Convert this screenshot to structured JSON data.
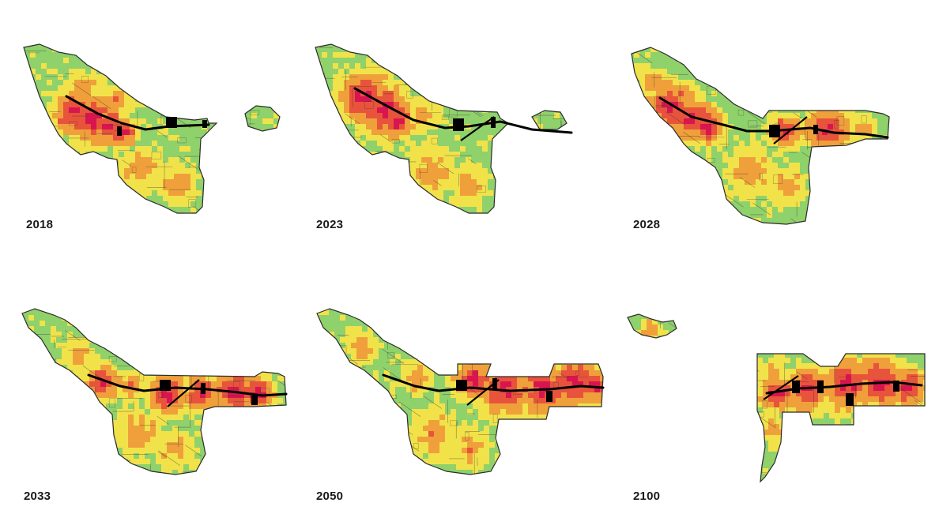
{
  "panels": [
    {
      "id": "p2018",
      "year": "2018",
      "stage": 0
    },
    {
      "id": "p2023",
      "year": "2023",
      "stage": 1
    },
    {
      "id": "p2028",
      "year": "2028",
      "stage": 2
    },
    {
      "id": "p2033",
      "year": "2033",
      "stage": 3
    },
    {
      "id": "p2050",
      "year": "2050",
      "stage": 4
    },
    {
      "id": "p2100",
      "year": "2100",
      "stage": 5
    }
  ],
  "palette": {
    "outline": "#2b2b2b",
    "street": "#333333",
    "rail": "#000000",
    "gray": "#a9aab3",
    "green": "#8fd16b",
    "yellow": "#f1e24a",
    "orange": "#f0a03a",
    "red": "#e8533c",
    "crimson": "#d8154f"
  }
}
